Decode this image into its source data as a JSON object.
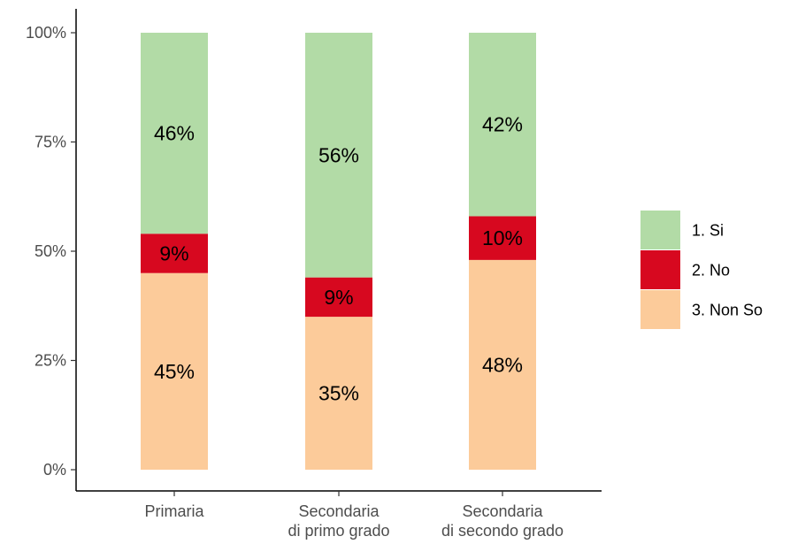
{
  "chart_data": {
    "type": "bar",
    "stacked": true,
    "orientation": "vertical",
    "title": "",
    "xlabel": "",
    "ylabel": "",
    "ylim": [
      0,
      100
    ],
    "y_tick_labels": [
      "0%",
      "25%",
      "50%",
      "75%",
      "100%"
    ],
    "y_ticks": [
      0,
      25,
      50,
      75,
      100
    ],
    "grid": false,
    "legend_position": "right",
    "categories": [
      [
        "Primaria"
      ],
      [
        "Secondaria",
        "di primo grado"
      ],
      [
        "Secondaria",
        "di secondo grado"
      ]
    ],
    "series": [
      {
        "name": "3. Non So",
        "color": "#fccb9a",
        "values": [
          45,
          35,
          48
        ],
        "labels": [
          "45%",
          "35%",
          "48%"
        ]
      },
      {
        "name": "2. No",
        "color": "#d7081f",
        "values": [
          9,
          9,
          10
        ],
        "labels": [
          "9%",
          "9%",
          "10%"
        ]
      },
      {
        "name": "1. Si",
        "color": "#b2dba6",
        "values": [
          46,
          56,
          42
        ],
        "labels": [
          "46%",
          "56%",
          "42%"
        ]
      }
    ],
    "legend_order": [
      "1. Si",
      "2. No",
      "3. Non So"
    ]
  }
}
